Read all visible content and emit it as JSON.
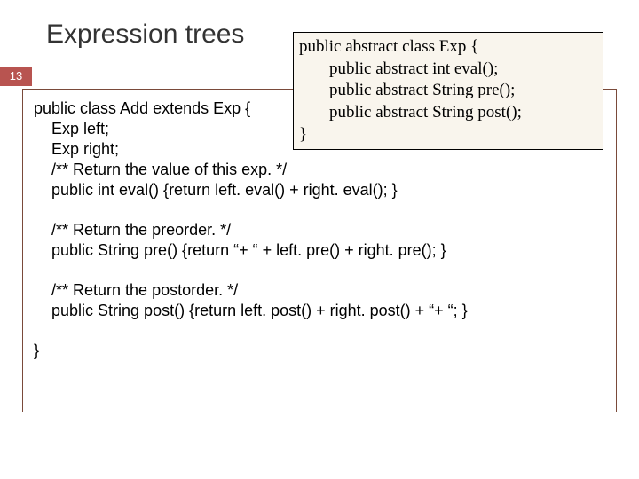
{
  "title": "Expression trees",
  "pageNumber": "13",
  "overlay": {
    "l1": "public abstract class Exp {",
    "l2": "public abstract int eval();",
    "l3": "public abstract String pre();",
    "l4": "public abstract String post();",
    "l5": "}"
  },
  "main": {
    "l1": "public class Add extends Exp {",
    "l2": "Exp left;",
    "l3": "Exp right;",
    "l4": "/** Return the value of this exp. */",
    "l5": "public int eval() {return left. eval() + right. eval(); }",
    "l6": "/** Return the preorder. */",
    "l7": "public String pre() {return “+  “ + left. pre() + right. pre(); }",
    "l8": "/** Return the postorder. */",
    "l9": "public String post() {return left. post() + right. post() + “+  “; }",
    "l10": "}"
  },
  "colors": {
    "badge": "#b85450",
    "overlayBg": "#f9f5ed",
    "borderMain": "#7a4a3a"
  }
}
